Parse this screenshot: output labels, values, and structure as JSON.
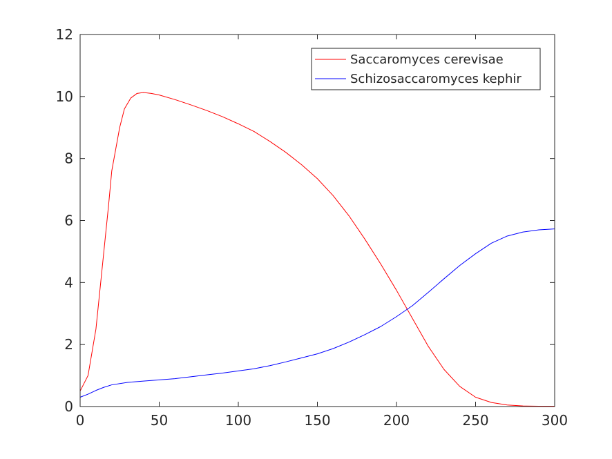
{
  "chart_data": {
    "type": "line",
    "title": "",
    "xlabel": "",
    "ylabel": "",
    "xlim": [
      0,
      300
    ],
    "ylim": [
      0,
      12
    ],
    "xticks": [
      0,
      50,
      100,
      150,
      200,
      250,
      300
    ],
    "yticks": [
      0,
      2,
      4,
      6,
      8,
      10,
      12
    ],
    "grid": false,
    "legend_position": "top-right",
    "series": [
      {
        "name": "Saccaromyces cerevisae",
        "color": "#ff0000",
        "points": [
          [
            0,
            0.5
          ],
          [
            5,
            1.0
          ],
          [
            10,
            2.5
          ],
          [
            15,
            5.0
          ],
          [
            18,
            6.5
          ],
          [
            20,
            7.6
          ],
          [
            25,
            9.0
          ],
          [
            28,
            9.6
          ],
          [
            32,
            9.95
          ],
          [
            36,
            10.1
          ],
          [
            40,
            10.13
          ],
          [
            45,
            10.1
          ],
          [
            50,
            10.05
          ],
          [
            60,
            9.9
          ],
          [
            70,
            9.73
          ],
          [
            80,
            9.55
          ],
          [
            90,
            9.35
          ],
          [
            100,
            9.12
          ],
          [
            110,
            8.87
          ],
          [
            120,
            8.55
          ],
          [
            130,
            8.2
          ],
          [
            140,
            7.8
          ],
          [
            150,
            7.35
          ],
          [
            160,
            6.8
          ],
          [
            170,
            6.15
          ],
          [
            180,
            5.4
          ],
          [
            190,
            4.6
          ],
          [
            200,
            3.75
          ],
          [
            210,
            2.85
          ],
          [
            220,
            1.95
          ],
          [
            230,
            1.2
          ],
          [
            240,
            0.65
          ],
          [
            250,
            0.3
          ],
          [
            260,
            0.13
          ],
          [
            270,
            0.05
          ],
          [
            280,
            0.02
          ],
          [
            290,
            0.01
          ],
          [
            300,
            0.01
          ]
        ]
      },
      {
        "name": "Schizosaccaromyces kephir",
        "color": "#0000ff",
        "points": [
          [
            0,
            0.3
          ],
          [
            5,
            0.4
          ],
          [
            10,
            0.52
          ],
          [
            15,
            0.62
          ],
          [
            20,
            0.7
          ],
          [
            30,
            0.78
          ],
          [
            40,
            0.82
          ],
          [
            50,
            0.86
          ],
          [
            60,
            0.9
          ],
          [
            70,
            0.96
          ],
          [
            80,
            1.02
          ],
          [
            90,
            1.08
          ],
          [
            100,
            1.15
          ],
          [
            110,
            1.22
          ],
          [
            120,
            1.32
          ],
          [
            130,
            1.44
          ],
          [
            140,
            1.57
          ],
          [
            150,
            1.7
          ],
          [
            160,
            1.87
          ],
          [
            170,
            2.08
          ],
          [
            180,
            2.32
          ],
          [
            190,
            2.58
          ],
          [
            200,
            2.9
          ],
          [
            210,
            3.25
          ],
          [
            220,
            3.68
          ],
          [
            230,
            4.12
          ],
          [
            240,
            4.55
          ],
          [
            250,
            4.93
          ],
          [
            260,
            5.27
          ],
          [
            270,
            5.5
          ],
          [
            280,
            5.63
          ],
          [
            290,
            5.7
          ],
          [
            300,
            5.73
          ]
        ]
      }
    ]
  }
}
